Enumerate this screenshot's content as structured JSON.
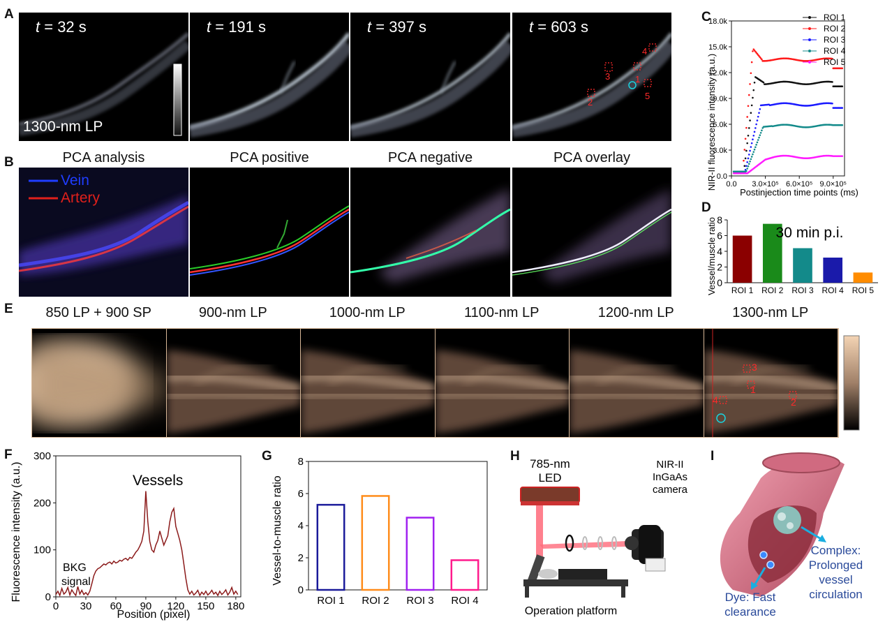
{
  "panel_labels": {
    "A": "A",
    "B": "B",
    "C": "C",
    "D": "D",
    "E": "E",
    "F": "F",
    "G": "G",
    "H": "H",
    "I": "I"
  },
  "panelA": {
    "t_var": "t",
    "frames": [
      " = 32 s",
      " = 191 s",
      " = 397 s",
      " = 603 s"
    ],
    "filter_label": "1300-nm LP",
    "roi_labels": [
      "1",
      "2",
      "3",
      "4",
      "5"
    ]
  },
  "panelB": {
    "titles": [
      "PCA analysis",
      "PCA positive",
      "PCA negative",
      "PCA overlay"
    ],
    "legend": [
      "Vein",
      "Artery"
    ],
    "legend_colors": [
      "#1f3dff",
      "#e0201b"
    ]
  },
  "panelE": {
    "titles": [
      "850 LP + 900 SP",
      "900-nm LP",
      "1000-nm LP",
      "1100-nm LP",
      "1200-nm LP",
      "1300-nm LP"
    ],
    "roi_labels": [
      "1",
      "2",
      "3",
      "4"
    ]
  },
  "panelH": {
    "led": "785-nm\nLED",
    "led_lines": [
      "785-nm",
      "LED"
    ],
    "camera_lines": [
      "NIR-II",
      "InGaAs",
      "camera"
    ],
    "platform": "Operation platform"
  },
  "panelI": {
    "dye_lines": [
      "Dye: Fast",
      "clearance"
    ],
    "complex_lines": [
      "Complex:",
      "Prolonged",
      "vessel",
      "circulation"
    ]
  },
  "chart_data": [
    {
      "id": "C",
      "type": "scatter",
      "ylabel": "NIR-II fluorescence intensity (a.u.)",
      "xlabel": "Postinjection time points (ms)",
      "xlim": [
        0,
        1000000
      ],
      "ylim": [
        0,
        18000
      ],
      "xticks": [
        0,
        300000,
        600000,
        900000
      ],
      "xtick_labels": [
        "0.0",
        "3.0×10⁵",
        "6.0×10⁵",
        "9.0×10⁵"
      ],
      "yticks": [
        0,
        3000,
        6000,
        9000,
        12000,
        15000,
        18000
      ],
      "ytick_labels": [
        "0.0",
        "3.0k",
        "6.0k",
        "9.0k",
        "12.0k",
        "15.0k",
        "18.0k"
      ],
      "legend_position": "top-right",
      "series": [
        {
          "name": "ROI 1",
          "color": "#111111",
          "baseline": 500,
          "rise_start": 110000,
          "peak_time": 210000,
          "peak": 11500,
          "plateau": 10800,
          "drop_time": 900000,
          "end": 10400
        },
        {
          "name": "ROI 2",
          "color": "#ff1a1a",
          "baseline": 500,
          "rise_start": 100000,
          "peak_time": 190000,
          "peak": 14800,
          "plateau": 13500,
          "drop_time": 900000,
          "end": 12500
        },
        {
          "name": "ROI 3",
          "color": "#1a1aff",
          "baseline": 500,
          "rise_start": 120000,
          "peak_time": 260000,
          "peak": 8200,
          "plateau": 8300,
          "drop_time": 900000,
          "end": 7900
        },
        {
          "name": "ROI 4",
          "color": "#138a8a",
          "baseline": 500,
          "rise_start": 130000,
          "peak_time": 280000,
          "peak": 5700,
          "plateau": 5800,
          "drop_time": 900000,
          "end": 5900
        },
        {
          "name": "ROI 5",
          "color": "#ff1aff",
          "baseline": 300,
          "rise_start": 140000,
          "peak_time": 300000,
          "peak": 1900,
          "plateau": 2200,
          "drop_time": 900000,
          "end": 2300
        }
      ]
    },
    {
      "id": "D",
      "type": "bar",
      "ylabel": "Vessel/muscle ratio",
      "annotation": "30 min p.i.",
      "categories": [
        "ROI 1",
        "ROI 2",
        "ROI 3",
        "ROI 4",
        "ROI 5"
      ],
      "values": [
        6.0,
        7.5,
        4.4,
        3.2,
        1.3
      ],
      "colors": [
        "#8b0000",
        "#1a8a1a",
        "#138a8a",
        "#1a1aaa",
        "#ff8c00"
      ],
      "ylim": [
        0,
        8
      ],
      "yticks": [
        0,
        2,
        4,
        6,
        8
      ]
    },
    {
      "id": "F",
      "type": "line",
      "ylabel": "Fluorescence intensity (a.u.)",
      "xlabel": "Position (pixel)",
      "xlim": [
        0,
        185
      ],
      "ylim": [
        0,
        300
      ],
      "xticks": [
        0,
        30,
        60,
        90,
        120,
        150,
        180
      ],
      "yticks": [
        0,
        100,
        200,
        300
      ],
      "annotations": [
        "Vessels",
        "BKG",
        "signal"
      ],
      "color": "#8b1a1a",
      "x": [
        0,
        2,
        4,
        6,
        8,
        10,
        12,
        14,
        16,
        18,
        20,
        22,
        24,
        26,
        28,
        30,
        32,
        34,
        36,
        38,
        40,
        42,
        44,
        46,
        48,
        50,
        52,
        54,
        56,
        58,
        60,
        62,
        64,
        66,
        68,
        70,
        72,
        74,
        76,
        78,
        80,
        82,
        84,
        86,
        88,
        90,
        92,
        94,
        96,
        98,
        100,
        102,
        104,
        106,
        108,
        110,
        112,
        114,
        116,
        118,
        120,
        122,
        124,
        126,
        128,
        130,
        132,
        134,
        136,
        138,
        140,
        142,
        144,
        146,
        148,
        150,
        152,
        154,
        156,
        158,
        160,
        162,
        164,
        166,
        168,
        170,
        172,
        174,
        176,
        178,
        180,
        182
      ],
      "y": [
        5,
        12,
        3,
        18,
        6,
        10,
        20,
        4,
        15,
        8,
        3,
        22,
        6,
        14,
        5,
        9,
        4,
        12,
        28,
        45,
        55,
        60,
        62,
        66,
        70,
        68,
        72,
        74,
        70,
        76,
        72,
        74,
        78,
        76,
        80,
        82,
        78,
        84,
        82,
        88,
        95,
        100,
        108,
        118,
        140,
        225,
        160,
        118,
        100,
        95,
        110,
        120,
        140,
        125,
        110,
        120,
        130,
        160,
        180,
        188,
        150,
        135,
        120,
        100,
        70,
        40,
        15,
        6,
        12,
        4,
        8,
        14,
        3,
        10,
        5,
        12,
        4,
        8,
        14,
        6,
        10,
        3,
        12,
        5,
        9,
        15,
        4,
        10,
        20,
        6,
        12,
        5
      ]
    },
    {
      "id": "G",
      "type": "bar",
      "ylabel": "Vessel-to-muscle ratio",
      "categories": [
        "ROI 1",
        "ROI 2",
        "ROI 3",
        "ROI 4"
      ],
      "values": [
        5.3,
        5.85,
        4.5,
        1.85
      ],
      "colors": [
        "#1a1a9a",
        "#ff8c1a",
        "#a020f0",
        "#ff1a8c"
      ],
      "ylim": [
        0,
        8
      ],
      "yticks": [
        0,
        2,
        4,
        6,
        8
      ]
    }
  ]
}
